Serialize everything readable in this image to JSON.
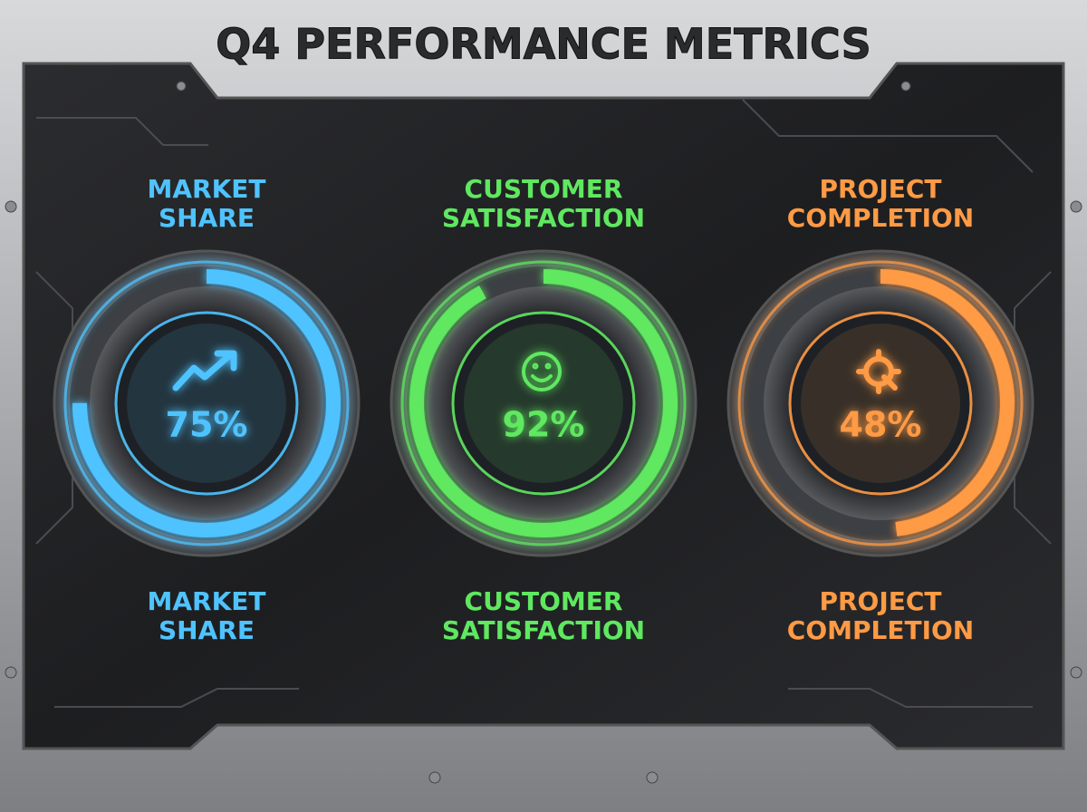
{
  "title": "Q4 PERFORMANCE METRICS",
  "gauge_range": [
    0,
    100
  ],
  "gauges": [
    {
      "label_top": [
        "MARKET",
        "SHARE"
      ],
      "value": 75,
      "value_label": "75%",
      "label_bottom": [
        "MARKET",
        "SHARE"
      ],
      "color": "#4fc3ff"
    },
    {
      "label_top": [
        "CUSTOMER",
        "SATISFACTION"
      ],
      "value": 92,
      "value_label": "92%",
      "label_bottom": [
        "CUSTOMER",
        "SATISFACTION"
      ],
      "color": "#5fe860"
    },
    {
      "label_top": [
        "PROJECT",
        "COMPLETION"
      ],
      "value": 48,
      "value_label": "48%",
      "label_bottom": [
        "PROJECT",
        "COMPLETION"
      ],
      "color": "#ff9a45"
    }
  ]
}
